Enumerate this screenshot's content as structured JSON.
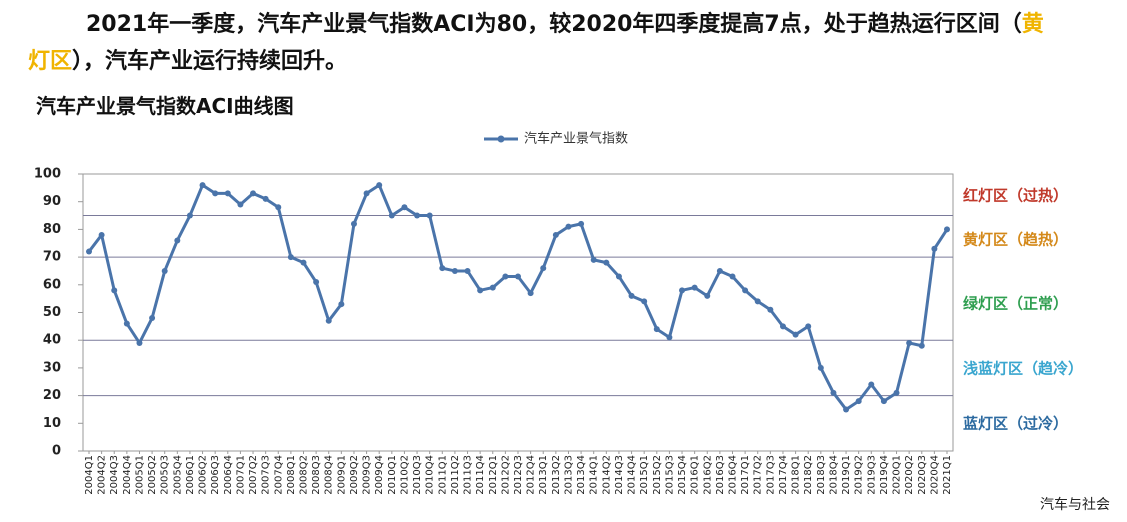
{
  "headline": [
    "2021年一季度，汽车产业景气指数ACI为80，较2020年四季度提高7点，处于趋热运行区间（",
    "黄灯区",
    "），汽车产业运行持续回升。"
  ],
  "watermark": "汽车与社会",
  "chart_data": {
    "type": "line",
    "title": "汽车产业景气指数ACI曲线图",
    "categories": [
      "2004Q1",
      "2004Q2",
      "2004Q3",
      "2004Q4",
      "2005Q1",
      "2005Q2",
      "2005Q3",
      "2005Q4",
      "2006Q1",
      "2006Q2",
      "2006Q3",
      "2006Q4",
      "2007Q1",
      "2007Q2",
      "2007Q3",
      "2007Q4",
      "2008Q1",
      "2008Q2",
      "2008Q3",
      "2008Q4",
      "2009Q1",
      "2009Q2",
      "2009Q3",
      "2009Q4",
      "2010Q1",
      "2010Q2",
      "2010Q3",
      "2010Q4",
      "2011Q1",
      "2011Q2",
      "2011Q3",
      "2011Q4",
      "2012Q1",
      "2012Q2",
      "2012Q3",
      "2012Q4",
      "2013Q1",
      "2013Q2",
      "2013Q3",
      "2013Q4",
      "2014Q1",
      "2014Q2",
      "2014Q3",
      "2014Q4",
      "2015Q1",
      "2015Q2",
      "2015Q3",
      "2015Q4",
      "2016Q1",
      "2016Q2",
      "2016Q3",
      "2016Q4",
      "2017Q1",
      "2017Q2",
      "2017Q3",
      "2017Q4",
      "2018Q1",
      "2018Q2",
      "2018Q3",
      "2018Q4",
      "2019Q1",
      "2019Q2",
      "2019Q3",
      "2019Q4",
      "2020Q1",
      "2020Q2",
      "2020Q3",
      "2020Q4",
      "2021Q1"
    ],
    "series": [
      {
        "name": "汽车产业景气指数",
        "color": "#4a74aa",
        "values": [
          72,
          78,
          58,
          46,
          39,
          48,
          65,
          76,
          85,
          96,
          93,
          93,
          89,
          93,
          91,
          88,
          70,
          68,
          61,
          47,
          53,
          82,
          93,
          96,
          85,
          88,
          85,
          85,
          66,
          65,
          65,
          58,
          59,
          63,
          63,
          57,
          66,
          78,
          81,
          82,
          69,
          68,
          63,
          56,
          54,
          44,
          41,
          58,
          59,
          56,
          65,
          63,
          58,
          54,
          51,
          45,
          42,
          45,
          30,
          21,
          15,
          18,
          24,
          18,
          21,
          39,
          38,
          73,
          80
        ]
      }
    ],
    "ylim": [
      0,
      100
    ],
    "yticks": [
      0,
      10,
      20,
      30,
      40,
      50,
      60,
      70,
      80,
      90,
      100
    ],
    "zone_lines": [
      85,
      70,
      40,
      20
    ],
    "zone_labels": [
      {
        "label": "红灯区（过热）",
        "color": "#c0392b"
      },
      {
        "label": "黄灯区（趋热）",
        "color": "#d4891a"
      },
      {
        "label": "绿灯区（正常）",
        "color": "#2e9e4f"
      },
      {
        "label": "浅蓝灯区（趋冷）",
        "color": "#3aa6cf"
      },
      {
        "label": "蓝灯区（过冷）",
        "color": "#2c6aa0"
      }
    ]
  }
}
